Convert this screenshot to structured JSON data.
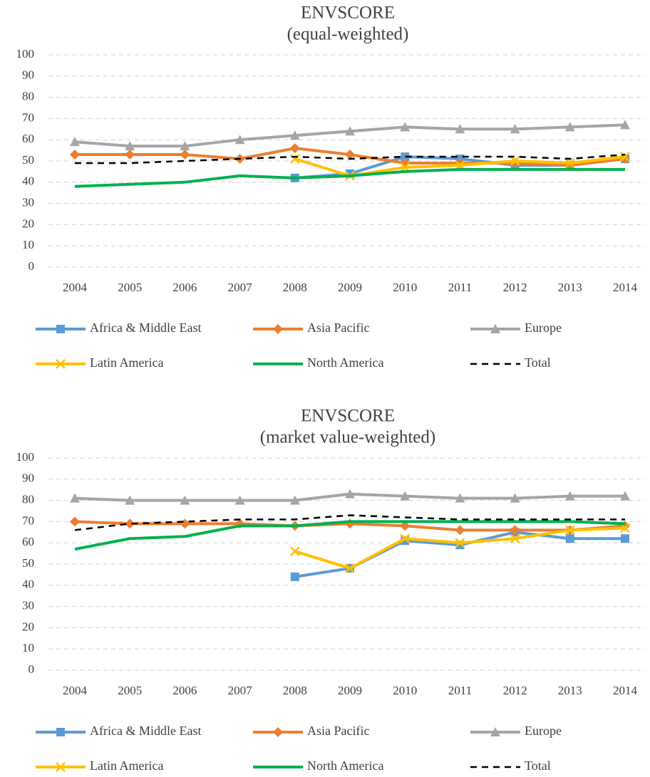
{
  "chart_data": [
    {
      "type": "line",
      "title": "ENVSCORE",
      "subtitle": "(equal-weighted)",
      "categories": [
        "2004",
        "2005",
        "2006",
        "2007",
        "2008",
        "2009",
        "2010",
        "2011",
        "2012",
        "2013",
        "2014"
      ],
      "ylim": [
        0,
        100
      ],
      "yticks": [
        0,
        10,
        20,
        30,
        40,
        50,
        60,
        70,
        80,
        90,
        100
      ],
      "grid": true,
      "series": [
        {
          "name": "Africa & Middle East",
          "color": "#5b9bd5",
          "marker": "square",
          "values": [
            null,
            null,
            null,
            null,
            42,
            44,
            52,
            51,
            48,
            48,
            51
          ]
        },
        {
          "name": "Asia Pacific",
          "color": "#ed7d31",
          "marker": "diamond",
          "values": [
            53,
            53,
            53,
            51,
            56,
            53,
            49,
            49,
            49,
            48,
            51
          ]
        },
        {
          "name": "Europe",
          "color": "#a5a5a5",
          "marker": "triangle",
          "values": [
            59,
            57,
            57,
            60,
            62,
            64,
            66,
            65,
            65,
            66,
            67
          ]
        },
        {
          "name": "Latin America",
          "color": "#ffc000",
          "marker": "x",
          "values": [
            null,
            null,
            null,
            null,
            51,
            43,
            47,
            48,
            50,
            49,
            52
          ]
        },
        {
          "name": "North America",
          "color": "#00b050",
          "marker": "none",
          "values": [
            38,
            39,
            40,
            43,
            42,
            43,
            45,
            46,
            46,
            46,
            46
          ]
        },
        {
          "name": "Total",
          "color": "#000000",
          "marker": "none",
          "dashed": true,
          "values": [
            49,
            49,
            50,
            51,
            52,
            51,
            52,
            52,
            52,
            51,
            53
          ]
        }
      ]
    },
    {
      "type": "line",
      "title": "ENVSCORE",
      "subtitle": "(market value-weighted)",
      "categories": [
        "2004",
        "2005",
        "2006",
        "2007",
        "2008",
        "2009",
        "2010",
        "2011",
        "2012",
        "2013",
        "2014"
      ],
      "ylim": [
        0,
        100
      ],
      "yticks": [
        0,
        10,
        20,
        30,
        40,
        50,
        60,
        70,
        80,
        90,
        100
      ],
      "grid": true,
      "series": [
        {
          "name": "Africa & Middle East",
          "color": "#5b9bd5",
          "marker": "square",
          "values": [
            null,
            null,
            null,
            null,
            44,
            48,
            61,
            59,
            65,
            62,
            62
          ]
        },
        {
          "name": "Asia Pacific",
          "color": "#ed7d31",
          "marker": "diamond",
          "values": [
            70,
            69,
            69,
            69,
            68,
            69,
            68,
            66,
            66,
            66,
            68
          ]
        },
        {
          "name": "Europe",
          "color": "#a5a5a5",
          "marker": "triangle",
          "values": [
            81,
            80,
            80,
            80,
            80,
            83,
            82,
            81,
            81,
            82,
            82
          ]
        },
        {
          "name": "Latin America",
          "color": "#ffc000",
          "marker": "x",
          "values": [
            null,
            null,
            null,
            null,
            56,
            48,
            62,
            60,
            62,
            66,
            67
          ]
        },
        {
          "name": "North America",
          "color": "#00b050",
          "marker": "none",
          "values": [
            57,
            62,
            63,
            68,
            68,
            70,
            70,
            70,
            70,
            70,
            69
          ]
        },
        {
          "name": "Total",
          "color": "#000000",
          "marker": "none",
          "dashed": true,
          "values": [
            66,
            69,
            70,
            71,
            71,
            73,
            72,
            71,
            71,
            71,
            71
          ]
        }
      ]
    }
  ]
}
